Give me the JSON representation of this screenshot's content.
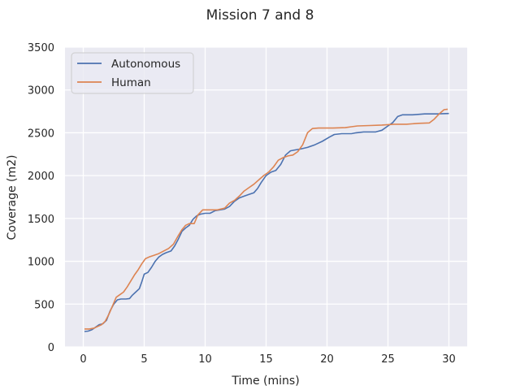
{
  "chart_data": {
    "type": "line",
    "title": "Mission 7 and 8",
    "xlabel": "Time (mins)",
    "ylabel": "Coverage (m2)",
    "xlim": [
      -1.5,
      31.5
    ],
    "ylim": [
      0,
      3500
    ],
    "xticks": [
      0,
      5,
      10,
      15,
      20,
      25,
      30
    ],
    "yticks": [
      0,
      500,
      1000,
      1500,
      2000,
      2500,
      3000,
      3500
    ],
    "grid": true,
    "legend_position": "upper-left",
    "colors": {
      "background": "#eaeaf2",
      "autonomous": "#4c72b0",
      "human": "#dd8452"
    },
    "series": [
      {
        "name": "Autonomous",
        "color": "#4c72b0",
        "points": [
          [
            0.1,
            180
          ],
          [
            0.4,
            185
          ],
          [
            0.7,
            200
          ],
          [
            1.0,
            230
          ],
          [
            1.3,
            260
          ],
          [
            1.6,
            270
          ],
          [
            1.9,
            310
          ],
          [
            2.2,
            420
          ],
          [
            2.5,
            500
          ],
          [
            2.8,
            550
          ],
          [
            3.1,
            560
          ],
          [
            3.5,
            560
          ],
          [
            3.8,
            565
          ],
          [
            4.0,
            600
          ],
          [
            4.3,
            640
          ],
          [
            4.6,
            680
          ],
          [
            4.8,
            760
          ],
          [
            5.0,
            850
          ],
          [
            5.3,
            870
          ],
          [
            5.6,
            930
          ],
          [
            5.9,
            1000
          ],
          [
            6.2,
            1050
          ],
          [
            6.5,
            1080
          ],
          [
            6.8,
            1100
          ],
          [
            7.2,
            1120
          ],
          [
            7.5,
            1180
          ],
          [
            7.8,
            1260
          ],
          [
            8.1,
            1350
          ],
          [
            8.4,
            1390
          ],
          [
            8.7,
            1420
          ],
          [
            9.0,
            1490
          ],
          [
            9.3,
            1530
          ],
          [
            9.6,
            1550
          ],
          [
            10.0,
            1560
          ],
          [
            10.4,
            1560
          ],
          [
            10.8,
            1590
          ],
          [
            11.2,
            1600
          ],
          [
            11.6,
            1610
          ],
          [
            12.0,
            1640
          ],
          [
            12.4,
            1700
          ],
          [
            12.8,
            1740
          ],
          [
            13.2,
            1760
          ],
          [
            13.6,
            1780
          ],
          [
            14.0,
            1800
          ],
          [
            14.3,
            1850
          ],
          [
            14.6,
            1920
          ],
          [
            15.0,
            2000
          ],
          [
            15.4,
            2040
          ],
          [
            15.8,
            2060
          ],
          [
            16.2,
            2130
          ],
          [
            16.6,
            2240
          ],
          [
            17.0,
            2290
          ],
          [
            17.4,
            2300
          ],
          [
            17.8,
            2310
          ],
          [
            18.4,
            2330
          ],
          [
            19.0,
            2360
          ],
          [
            19.6,
            2400
          ],
          [
            20.2,
            2450
          ],
          [
            20.6,
            2480
          ],
          [
            21.2,
            2490
          ],
          [
            22.0,
            2490
          ],
          [
            22.4,
            2500
          ],
          [
            23.0,
            2510
          ],
          [
            24.0,
            2510
          ],
          [
            24.5,
            2530
          ],
          [
            25.0,
            2580
          ],
          [
            25.4,
            2620
          ],
          [
            25.8,
            2690
          ],
          [
            26.2,
            2710
          ],
          [
            27.0,
            2710
          ],
          [
            28.0,
            2720
          ],
          [
            29.0,
            2720
          ],
          [
            30.0,
            2725
          ]
        ]
      },
      {
        "name": "Human",
        "color": "#dd8452",
        "points": [
          [
            0.1,
            210
          ],
          [
            0.5,
            210
          ],
          [
            0.9,
            220
          ],
          [
            1.2,
            240
          ],
          [
            1.5,
            260
          ],
          [
            1.8,
            300
          ],
          [
            2.1,
            380
          ],
          [
            2.4,
            480
          ],
          [
            2.7,
            580
          ],
          [
            3.0,
            610
          ],
          [
            3.3,
            640
          ],
          [
            3.6,
            700
          ],
          [
            3.9,
            770
          ],
          [
            4.2,
            840
          ],
          [
            4.5,
            900
          ],
          [
            4.8,
            970
          ],
          [
            5.1,
            1030
          ],
          [
            5.4,
            1050
          ],
          [
            5.8,
            1070
          ],
          [
            6.2,
            1090
          ],
          [
            6.6,
            1120
          ],
          [
            7.0,
            1150
          ],
          [
            7.4,
            1200
          ],
          [
            7.8,
            1300
          ],
          [
            8.1,
            1370
          ],
          [
            8.4,
            1420
          ],
          [
            8.7,
            1440
          ],
          [
            9.1,
            1440
          ],
          [
            9.4,
            1540
          ],
          [
            9.8,
            1600
          ],
          [
            10.4,
            1600
          ],
          [
            11.0,
            1600
          ],
          [
            11.6,
            1620
          ],
          [
            12.0,
            1680
          ],
          [
            12.4,
            1710
          ],
          [
            12.8,
            1760
          ],
          [
            13.2,
            1820
          ],
          [
            13.6,
            1860
          ],
          [
            14.0,
            1900
          ],
          [
            14.4,
            1950
          ],
          [
            14.8,
            2000
          ],
          [
            15.2,
            2040
          ],
          [
            15.6,
            2100
          ],
          [
            16.0,
            2180
          ],
          [
            16.4,
            2210
          ],
          [
            16.8,
            2230
          ],
          [
            17.2,
            2240
          ],
          [
            17.6,
            2280
          ],
          [
            18.0,
            2360
          ],
          [
            18.4,
            2500
          ],
          [
            18.8,
            2550
          ],
          [
            19.3,
            2555
          ],
          [
            20.5,
            2555
          ],
          [
            21.5,
            2560
          ],
          [
            22.0,
            2570
          ],
          [
            22.5,
            2580
          ],
          [
            23.5,
            2585
          ],
          [
            24.5,
            2590
          ],
          [
            25.5,
            2600
          ],
          [
            26.5,
            2600
          ],
          [
            27.5,
            2610
          ],
          [
            28.4,
            2615
          ],
          [
            28.8,
            2660
          ],
          [
            29.2,
            2720
          ],
          [
            29.6,
            2770
          ],
          [
            29.9,
            2775
          ]
        ]
      }
    ]
  }
}
